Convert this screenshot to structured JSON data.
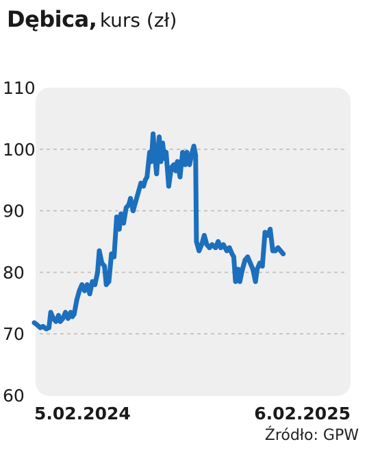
{
  "header": {
    "title": "Dębica,",
    "subtitle": "kurs (zł)"
  },
  "footer": {
    "source": "Źródło: GPW"
  },
  "colors": {
    "line": "#1c6fbd",
    "plot_background": "#efefef",
    "grid": "#bdbdbd",
    "text": "#1a1a1a"
  },
  "chart_data": {
    "type": "line",
    "title": "Dębica,",
    "subtitle": "kurs (zł)",
    "xlabel": "",
    "ylabel": "",
    "ylim": [
      60,
      110
    ],
    "yticks": [
      60,
      70,
      80,
      90,
      100,
      110
    ],
    "grid": true,
    "legend": "none",
    "xlim": [
      "2024-02-05",
      "2025-02-06"
    ],
    "x_tick_labels": [
      "5.02.2024",
      "6.02.2025"
    ],
    "series": [
      {
        "values": [
          [
            "2024-02-05",
            71.8
          ],
          [
            "2024-02-08",
            71.5
          ],
          [
            "2024-02-12",
            71.0
          ],
          [
            "2024-02-15",
            71.2
          ],
          [
            "2024-02-19",
            70.8
          ],
          [
            "2024-02-22",
            71.0
          ],
          [
            "2024-02-24",
            73.5
          ],
          [
            "2024-02-27",
            72.5
          ],
          [
            "2024-03-01",
            72.0
          ],
          [
            "2024-03-04",
            73.0
          ],
          [
            "2024-03-06",
            72.0
          ],
          [
            "2024-03-09",
            72.5
          ],
          [
            "2024-03-12",
            73.5
          ],
          [
            "2024-03-15",
            72.5
          ],
          [
            "2024-03-18",
            73.5
          ],
          [
            "2024-03-20",
            72.8
          ],
          [
            "2024-03-22",
            73.2
          ],
          [
            "2024-03-25",
            75.5
          ],
          [
            "2024-03-28",
            77.0
          ],
          [
            "2024-03-31",
            78.0
          ],
          [
            "2024-04-03",
            77.0
          ],
          [
            "2024-04-06",
            78.0
          ],
          [
            "2024-04-09",
            76.5
          ],
          [
            "2024-04-12",
            78.5
          ],
          [
            "2024-04-15",
            78.0
          ],
          [
            "2024-04-18",
            80.0
          ],
          [
            "2024-04-20",
            83.5
          ],
          [
            "2024-04-23",
            81.5
          ],
          [
            "2024-04-26",
            81.0
          ],
          [
            "2024-04-28",
            78.0
          ],
          [
            "2024-05-01",
            78.5
          ],
          [
            "2024-05-04",
            83.0
          ],
          [
            "2024-05-07",
            82.5
          ],
          [
            "2024-05-10",
            89.0
          ],
          [
            "2024-05-13",
            87.0
          ],
          [
            "2024-05-15",
            89.5
          ],
          [
            "2024-05-18",
            88.0
          ],
          [
            "2024-05-21",
            90.5
          ],
          [
            "2024-05-24",
            91.0
          ],
          [
            "2024-05-26",
            92.0
          ],
          [
            "2024-05-29",
            90.0
          ],
          [
            "2024-06-01",
            91.5
          ],
          [
            "2024-06-04",
            93.0
          ],
          [
            "2024-06-07",
            94.5
          ],
          [
            "2024-06-10",
            94.0
          ],
          [
            "2024-06-12",
            95.0
          ],
          [
            "2024-06-14",
            95.5
          ],
          [
            "2024-06-17",
            99.5
          ],
          [
            "2024-06-19",
            98.0
          ],
          [
            "2024-06-21",
            102.5
          ],
          [
            "2024-06-23",
            99.0
          ],
          [
            "2024-06-25",
            96.0
          ],
          [
            "2024-06-28",
            102.0
          ],
          [
            "2024-06-30",
            98.0
          ],
          [
            "2024-07-02",
            101.0
          ],
          [
            "2024-07-04",
            98.5
          ],
          [
            "2024-07-06",
            99.5
          ],
          [
            "2024-07-09",
            94.0
          ],
          [
            "2024-07-12",
            97.0
          ],
          [
            "2024-07-15",
            97.5
          ],
          [
            "2024-07-17",
            96.5
          ],
          [
            "2024-07-19",
            98.0
          ],
          [
            "2024-07-22",
            95.5
          ],
          [
            "2024-07-25",
            99.5
          ],
          [
            "2024-07-28",
            97.5
          ],
          [
            "2024-07-30",
            99.5
          ],
          [
            "2024-08-02",
            97.5
          ],
          [
            "2024-08-05",
            99.5
          ],
          [
            "2024-08-07",
            100.5
          ],
          [
            "2024-08-09",
            99.0
          ],
          [
            "2024-08-10",
            85.0
          ],
          [
            "2024-08-13",
            83.5
          ],
          [
            "2024-08-16",
            84.5
          ],
          [
            "2024-08-19",
            86.0
          ],
          [
            "2024-08-22",
            84.5
          ],
          [
            "2024-08-25",
            84.0
          ],
          [
            "2024-08-28",
            84.5
          ],
          [
            "2024-09-01",
            84.0
          ],
          [
            "2024-09-04",
            85.0
          ],
          [
            "2024-09-07",
            84.0
          ],
          [
            "2024-09-10",
            84.5
          ],
          [
            "2024-09-14",
            83.5
          ],
          [
            "2024-09-17",
            84.0
          ],
          [
            "2024-09-20",
            83.0
          ],
          [
            "2024-09-22",
            82.5
          ],
          [
            "2024-09-24",
            78.5
          ],
          [
            "2024-09-27",
            80.5
          ],
          [
            "2024-09-29",
            78.5
          ],
          [
            "2024-10-02",
            80.5
          ],
          [
            "2024-10-05",
            82.0
          ],
          [
            "2024-10-08",
            82.5
          ],
          [
            "2024-10-11",
            81.5
          ],
          [
            "2024-10-14",
            80.5
          ],
          [
            "2024-10-17",
            78.5
          ],
          [
            "2024-10-19",
            80.5
          ],
          [
            "2024-10-22",
            81.5
          ],
          [
            "2024-10-25",
            81.0
          ],
          [
            "2024-10-28",
            86.5
          ],
          [
            "2024-10-31",
            86.0
          ],
          [
            "2024-11-03",
            87.0
          ],
          [
            "2024-11-06",
            83.5
          ],
          [
            "2024-11-09",
            83.5
          ],
          [
            "2024-11-12",
            84.0
          ],
          [
            "2024-11-15",
            83.5
          ],
          [
            "2024-11-18",
            83.0
          ]
        ]
      }
    ]
  }
}
